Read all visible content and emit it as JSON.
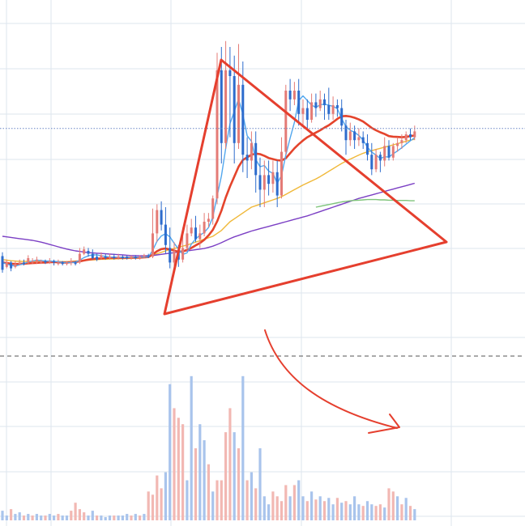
{
  "chart_data": {
    "type": "candlestick",
    "xlabel": "",
    "ylabel": "",
    "grid": true,
    "colors": {
      "up": "#e47b76",
      "down": "#2d6ccd",
      "volume_up": "#f2b8b3",
      "volume_down": "#a9c4ec",
      "ma_fast": "#52a7ee",
      "ma_mid": "#e4442c",
      "ma_slow": "#f0b838",
      "ma_long": "#7b3fc4",
      "ma_vlong": "#7ec47a",
      "annotation": "#e53f2e",
      "grid": "#dde6ee",
      "price_line": "#6a86c6",
      "divider": "#555555"
    },
    "price_ylim": [
      0,
      100
    ],
    "volume_ylim": [
      0,
      100
    ],
    "current_price": 67,
    "candles": [
      [
        20,
        23.2,
        18.5,
        24.5,
        17.5
      ],
      [
        20,
        19.5,
        21,
        22,
        19
      ],
      [
        20,
        21,
        19,
        21.5,
        18
      ],
      [
        20,
        19.5,
        20.5,
        21.5,
        19
      ],
      [
        20,
        20.5,
        21,
        22,
        20
      ],
      [
        20,
        21,
        20.5,
        22,
        20
      ],
      [
        20,
        21,
        22.5,
        23.5,
        20.5
      ],
      [
        20,
        21,
        21.5,
        22.5,
        20.5
      ],
      [
        20,
        21,
        22,
        23,
        20.5
      ],
      [
        20,
        21,
        21.5,
        22,
        20.5
      ],
      [
        20,
        21.5,
        21,
        22,
        20.5
      ],
      [
        20,
        21,
        21.5,
        22.5,
        20.5
      ],
      [
        20,
        21.5,
        21,
        22,
        20
      ],
      [
        20,
        20.5,
        21,
        22,
        20
      ],
      [
        20,
        21,
        20.5,
        21.5,
        20
      ],
      [
        20,
        20.5,
        21,
        21.5,
        20
      ],
      [
        20,
        21,
        21.5,
        22.5,
        20
      ],
      [
        20,
        21,
        20.5,
        21.5,
        20
      ],
      [
        20,
        21,
        24,
        26,
        20.5
      ],
      [
        20,
        24,
        25.5,
        26.5,
        23.5
      ],
      [
        20,
        25,
        24,
        26,
        23
      ],
      [
        20,
        24,
        22.5,
        25.5,
        22
      ],
      [
        20,
        23,
        22,
        24,
        21.5
      ],
      [
        20,
        22.5,
        23.5,
        24.5,
        22
      ],
      [
        20,
        23,
        22.5,
        24,
        22
      ],
      [
        20,
        22.5,
        23,
        24,
        22
      ],
      [
        20,
        23,
        22.5,
        24,
        22
      ],
      [
        20,
        22.5,
        23,
        24,
        22
      ],
      [
        20,
        23,
        22.5,
        23.5,
        22
      ],
      [
        20,
        23,
        22.5,
        23.5,
        22
      ],
      [
        20,
        22.5,
        23,
        23.5,
        22
      ],
      [
        20,
        23,
        22.5,
        23.5,
        22
      ],
      [
        20,
        22.5,
        23,
        23.5,
        22
      ],
      [
        20,
        23,
        23.5,
        24,
        22.5
      ],
      [
        20,
        23.5,
        23,
        24,
        22.5
      ],
      [
        60,
        23,
        31,
        39.5,
        22.5
      ],
      [
        40,
        31,
        39,
        41,
        28
      ],
      [
        55,
        39,
        34,
        42,
        32
      ],
      [
        50,
        34,
        27,
        40,
        24
      ],
      [
        65,
        26,
        21,
        33,
        19
      ],
      [
        55,
        21,
        25,
        28,
        19
      ],
      [
        45,
        25,
        22,
        27,
        19.5
      ],
      [
        35,
        22,
        26,
        33,
        21
      ],
      [
        40,
        26,
        31,
        34,
        25
      ],
      [
        35,
        31,
        33,
        36,
        30
      ],
      [
        40,
        33,
        29,
        37,
        28
      ],
      [
        35,
        29,
        31,
        34,
        26
      ],
      [
        40,
        31,
        35,
        38,
        30
      ],
      [
        38,
        35,
        36,
        38,
        33
      ],
      [
        45,
        36,
        43,
        44,
        34
      ],
      [
        62,
        43,
        87,
        93,
        41
      ],
      [
        75,
        87,
        62,
        95,
        55
      ],
      [
        60,
        62,
        87,
        97,
        60
      ],
      [
        55,
        87,
        85,
        95,
        64
      ],
      [
        58,
        85,
        62,
        92,
        55
      ],
      [
        62,
        62,
        82,
        96,
        60
      ],
      [
        85,
        82,
        58,
        90,
        52
      ],
      [
        55,
        58,
        56,
        64,
        50
      ],
      [
        50,
        56,
        62,
        66,
        53
      ],
      [
        45,
        62,
        51,
        66,
        45
      ],
      [
        40,
        51,
        46,
        57,
        40
      ],
      [
        36,
        46,
        51,
        56,
        40
      ],
      [
        32,
        51,
        48,
        56,
        44
      ],
      [
        30,
        48,
        52,
        56,
        45
      ],
      [
        28,
        52,
        44,
        56,
        40
      ],
      [
        26,
        44,
        59,
        64,
        43
      ],
      [
        24,
        59,
        80,
        82,
        58
      ],
      [
        22,
        80,
        77,
        84,
        73
      ],
      [
        20,
        77,
        80,
        83,
        75
      ],
      [
        18,
        80,
        72,
        84,
        68
      ],
      [
        16,
        72,
        74,
        77,
        68
      ],
      [
        14,
        74,
        70,
        77,
        67
      ],
      [
        12,
        70,
        76,
        79,
        69
      ],
      [
        11,
        76,
        74,
        79,
        71
      ],
      [
        11,
        74,
        77,
        80,
        73
      ],
      [
        11,
        77,
        75,
        79,
        70
      ],
      [
        12,
        75,
        72,
        81,
        70
      ],
      [
        12,
        72,
        75,
        78,
        70
      ],
      [
        13,
        75,
        74,
        77,
        71
      ],
      [
        14,
        74,
        68,
        77,
        66
      ],
      [
        15,
        68,
        63,
        70,
        58
      ],
      [
        14,
        63,
        66,
        69,
        61
      ],
      [
        13,
        66,
        63,
        68,
        60
      ],
      [
        12,
        63,
        64,
        67,
        61
      ],
      [
        10,
        64,
        62,
        66,
        60
      ],
      [
        9,
        62,
        58,
        65,
        56
      ],
      [
        8,
        58,
        53,
        62,
        51
      ],
      [
        9,
        53,
        58,
        60,
        52
      ],
      [
        10,
        58,
        56,
        59,
        52
      ],
      [
        12,
        56,
        61,
        64,
        54
      ],
      [
        20,
        61,
        57,
        63,
        56
      ],
      [
        14,
        57,
        61,
        62,
        56
      ],
      [
        12,
        61,
        62,
        64,
        59
      ],
      [
        13,
        62,
        63,
        65,
        60
      ],
      [
        10,
        63,
        65,
        66,
        62
      ],
      [
        9,
        65,
        64,
        67,
        63
      ],
      [
        8,
        64,
        66,
        68,
        63
      ]
    ],
    "volumes": [
      [
        6,
        "down"
      ],
      [
        3,
        "down"
      ],
      [
        7,
        "up"
      ],
      [
        4,
        "down"
      ],
      [
        5,
        "down"
      ],
      [
        3,
        "up"
      ],
      [
        4,
        "down"
      ],
      [
        3,
        "up"
      ],
      [
        4,
        "down"
      ],
      [
        3,
        "down"
      ],
      [
        3,
        "up"
      ],
      [
        4,
        "down"
      ],
      [
        3,
        "down"
      ],
      [
        4,
        "up"
      ],
      [
        3,
        "down"
      ],
      [
        3,
        "down"
      ],
      [
        6,
        "up"
      ],
      [
        11,
        "up"
      ],
      [
        7,
        "up"
      ],
      [
        5,
        "up"
      ],
      [
        3,
        "down"
      ],
      [
        6,
        "down"
      ],
      [
        3,
        "up"
      ],
      [
        3,
        "down"
      ],
      [
        2,
        "down"
      ],
      [
        3,
        "down"
      ],
      [
        3,
        "up"
      ],
      [
        3,
        "down"
      ],
      [
        3,
        "down"
      ],
      [
        4,
        "down"
      ],
      [
        3,
        "up"
      ],
      [
        4,
        "down"
      ],
      [
        3,
        "up"
      ],
      [
        4,
        "down"
      ],
      [
        18,
        "up"
      ],
      [
        16,
        "up"
      ],
      [
        28,
        "up"
      ],
      [
        20,
        "up"
      ],
      [
        30,
        "down"
      ],
      [
        85,
        "down"
      ],
      [
        70,
        "up"
      ],
      [
        64,
        "up"
      ],
      [
        60,
        "up"
      ],
      [
        25,
        "down"
      ],
      [
        90,
        "down"
      ],
      [
        45,
        "up"
      ],
      [
        60,
        "down"
      ],
      [
        50,
        "down"
      ],
      [
        35,
        "up"
      ],
      [
        18,
        "down"
      ],
      [
        25,
        "up"
      ],
      [
        25,
        "up"
      ],
      [
        55,
        "up"
      ],
      [
        70,
        "up"
      ],
      [
        55,
        "down"
      ],
      [
        45,
        "up"
      ],
      [
        90,
        "down"
      ],
      [
        25,
        "up"
      ],
      [
        30,
        "down"
      ],
      [
        20,
        "up"
      ],
      [
        45,
        "down"
      ],
      [
        15,
        "down"
      ],
      [
        10,
        "down"
      ],
      [
        18,
        "up"
      ],
      [
        15,
        "up"
      ],
      [
        12,
        "up"
      ],
      [
        22,
        "up"
      ],
      [
        15,
        "down"
      ],
      [
        22,
        "up"
      ],
      [
        25,
        "down"
      ],
      [
        15,
        "down"
      ],
      [
        12,
        "up"
      ],
      [
        18,
        "down"
      ],
      [
        13,
        "up"
      ],
      [
        15,
        "down"
      ],
      [
        12,
        "up"
      ],
      [
        14,
        "down"
      ],
      [
        10,
        "down"
      ],
      [
        14,
        "up"
      ],
      [
        11,
        "down"
      ],
      [
        12,
        "up"
      ],
      [
        10,
        "down"
      ],
      [
        15,
        "down"
      ],
      [
        10,
        "down"
      ],
      [
        9,
        "up"
      ],
      [
        12,
        "down"
      ],
      [
        10,
        "down"
      ],
      [
        9,
        "up"
      ],
      [
        10,
        "up"
      ],
      [
        8,
        "down"
      ],
      [
        20,
        "up"
      ],
      [
        18,
        "up"
      ],
      [
        15,
        "down"
      ],
      [
        10,
        "up"
      ],
      [
        14,
        "down"
      ],
      [
        9,
        "up"
      ],
      [
        7,
        "down"
      ]
    ],
    "moving_averages": [
      {
        "color_key": "ma_slow",
        "values": [
          22,
          21.8,
          21.6,
          21.5,
          21.4,
          21.4,
          21.4,
          21.4,
          21.4,
          21.3,
          21.3,
          21.3,
          21.3,
          21.3,
          21.3,
          21.3,
          21.4,
          21.5,
          21.6,
          21.7,
          21.8,
          21.9,
          22,
          22.1,
          22.1,
          22.2,
          22.2,
          22.3,
          22.3,
          22.4,
          22.4,
          22.5,
          22.5,
          22.6,
          22.7,
          23.5,
          24,
          24.5,
          25,
          25.5,
          25.8,
          26.2,
          26.6,
          27,
          27.5,
          28,
          28.5,
          29,
          29.5,
          30,
          31,
          32,
          33.5,
          35,
          36,
          37,
          38,
          39,
          40,
          40.5,
          41,
          41.5,
          42,
          42.5,
          43,
          43.6,
          44.4,
          45.2,
          46,
          46.8,
          47.6,
          48.3,
          49,
          49.7,
          50.5,
          51.4,
          52.3,
          53.2,
          54.1,
          55,
          55.8,
          56.5,
          57.2,
          57.9,
          58.5,
          59,
          59.4,
          59.8,
          60.2,
          60.6,
          61,
          61.4,
          61.8,
          62.2,
          62.6,
          63,
          63.3
        ]
      },
      {
        "color_key": "ma_long",
        "values": [
          30,
          29.8,
          29.6,
          29.4,
          29.2,
          29,
          28.8,
          28.6,
          28.3,
          28,
          27.6,
          27.2,
          26.8,
          26.4,
          26,
          25.6,
          25.3,
          25,
          24.8,
          24.6,
          24.4,
          24.3,
          24.2,
          24.1,
          24,
          23.9,
          23.8,
          23.7,
          23.6,
          23.5,
          23.4,
          23.4,
          23.3,
          23.3,
          23.3,
          23.4,
          23.6,
          23.8,
          24,
          24.2,
          24.4,
          24.6,
          24.8,
          25,
          25.2,
          25.4,
          25.6,
          25.8,
          26.2,
          26.6,
          27.2,
          27.8,
          28.5,
          29.2,
          29.8,
          30.3,
          30.8,
          31.3,
          31.8,
          32.2,
          32.6,
          33,
          33.4,
          33.8,
          34.2,
          34.6,
          35,
          35.4,
          35.8,
          36.2,
          36.6,
          37,
          37.5,
          38,
          38.5,
          39,
          39.5,
          40,
          40.5,
          41,
          41.5,
          42,
          42.5,
          43,
          43.4,
          43.8,
          44.2,
          44.6,
          45,
          45.4,
          45.8,
          46.2,
          46.6,
          47,
          47.4,
          47.8,
          48.2
        ]
      },
      {
        "color_key": "ma_vlong",
        "start": 73,
        "values": [
          40,
          40.3,
          40.6,
          40.9,
          41.2,
          41.5,
          41.8,
          42,
          42.2,
          42.3,
          42.4,
          42.5,
          42.6,
          42.6,
          42.6,
          42.5,
          42.5,
          42.4,
          42.4,
          42.3,
          42.3,
          42.3,
          42.2,
          42.2
        ]
      },
      {
        "color_key": "ma_mid",
        "values": [
          21,
          20.8,
          20.6,
          20.5,
          20.5,
          20.6,
          20.7,
          20.8,
          20.9,
          21,
          21,
          21.1,
          21.1,
          21.1,
          21,
          21,
          21.1,
          21.2,
          21.4,
          21.7,
          22,
          22.2,
          22.3,
          22.4,
          22.5,
          22.6,
          22.6,
          22.6,
          22.6,
          22.6,
          22.7,
          22.7,
          22.7,
          22.8,
          22.9,
          23.8,
          24.9,
          25.6,
          25.8,
          25.5,
          25.1,
          24.7,
          24.8,
          25.3,
          26,
          26.9,
          27.7,
          28.8,
          30.3,
          32.2,
          35.1,
          38.8,
          43.3,
          47.1,
          50.5,
          53.9,
          56.2,
          57.1,
          58,
          58.4,
          58.2,
          57.6,
          56.9,
          56.5,
          56.1,
          56,
          56.8,
          58.5,
          60.2,
          61.6,
          62.9,
          64,
          64.8,
          65.6,
          66.4,
          67.3,
          68.1,
          69.2,
          70.3,
          71.2,
          71.3,
          71.1,
          70.7,
          70.1,
          69.4,
          68.3,
          67.2,
          66.4,
          65.7,
          65.1,
          64.4,
          64.2,
          64.1,
          64,
          64.1,
          64.4,
          64.6
        ]
      },
      {
        "color_key": "ma_fast",
        "values": [
          21,
          20.5,
          20,
          19.8,
          20.2,
          20.6,
          21.2,
          21.5,
          21.8,
          21.7,
          21.5,
          21.5,
          21.4,
          21.3,
          21,
          21,
          21,
          21.1,
          21.8,
          22.7,
          23.3,
          23.6,
          23.6,
          23.3,
          23.1,
          22.9,
          22.8,
          22.8,
          22.7,
          22.7,
          22.7,
          22.8,
          22.8,
          22.9,
          22.9,
          25.2,
          28.3,
          30.1,
          30.9,
          29.8,
          27.6,
          25.6,
          23.8,
          24.3,
          27.3,
          29.1,
          30.4,
          31.3,
          33,
          36.6,
          43.8,
          50.7,
          60.2,
          68.7,
          72.9,
          77.1,
          71.8,
          64.5,
          62.6,
          56.3,
          53.9,
          54.3,
          52.4,
          51.6,
          48.2,
          50.9,
          57.9,
          63.7,
          69.1,
          76.6,
          78.2,
          76.6,
          75,
          74.3,
          75.1,
          75.4,
          75,
          74.6,
          73.8,
          70.4,
          67.6,
          66.4,
          65.7,
          64.6,
          63,
          60.6,
          58.9,
          57.9,
          56.7,
          57.3,
          57.2,
          58.3,
          59.3,
          60.4,
          61.6,
          62.8,
          63.8
        ]
      }
    ]
  }
}
